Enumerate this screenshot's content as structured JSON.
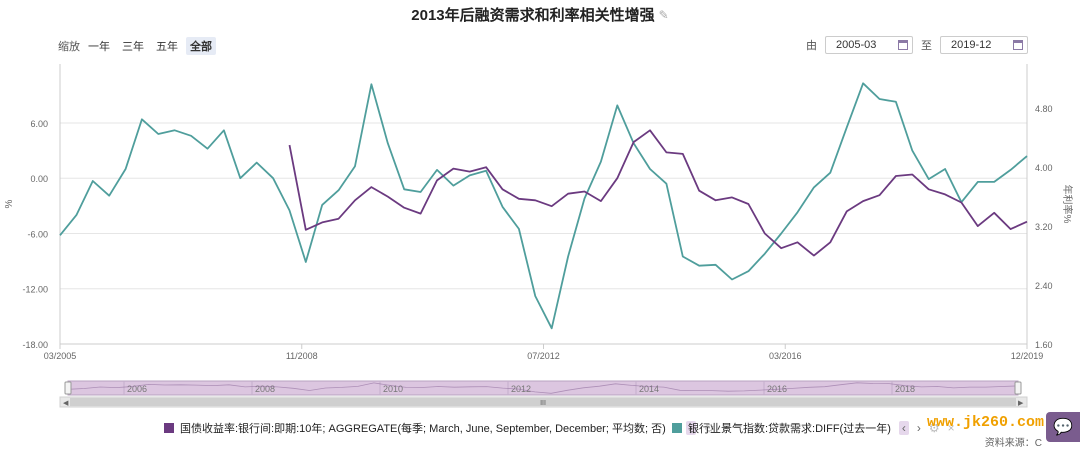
{
  "title": "2013年后融资需求和利率相关性增强",
  "zoom": {
    "label": "缩放",
    "options": [
      "一年",
      "三年",
      "五年",
      "全部"
    ],
    "active": "全部"
  },
  "range": {
    "from_label": "由",
    "from_value": "2005-03",
    "to_label": "至",
    "to_value": "2019-12"
  },
  "chart_data": {
    "type": "line",
    "x_tick_labels": [
      "03/2005",
      "11/2008",
      "07/2012",
      "03/2016",
      "12/2019"
    ],
    "y_left": {
      "label": "%",
      "ticks": [
        6.0,
        0.0,
        -6.0,
        -12.0,
        -18.0
      ],
      "tick_labels": [
        "6.00",
        "0.00",
        "-6.00",
        "-12.00",
        "-18.00"
      ],
      "range": [
        -18,
        12.4
      ]
    },
    "y_right": {
      "label": "年利率%",
      "ticks": [
        4.8,
        4.0,
        3.2,
        2.4,
        1.6
      ],
      "tick_labels": [
        "4.80",
        "4.00",
        "3.20",
        "2.40",
        "1.60"
      ],
      "range": [
        1.6,
        5.4
      ]
    },
    "x_range": [
      2005.25,
      2020.0
    ],
    "series": [
      {
        "name": "银行业景气指数:贷款需求:DIFF(过去一年)",
        "axis": "left",
        "color": "#4f9e9c",
        "points": [
          [
            2005.25,
            -6.2
          ],
          [
            2005.5,
            -4.0
          ],
          [
            2005.75,
            -0.3
          ],
          [
            2006.0,
            -1.9
          ],
          [
            2006.25,
            1.0
          ],
          [
            2006.5,
            6.4
          ],
          [
            2006.75,
            4.8
          ],
          [
            2007.0,
            5.2
          ],
          [
            2007.25,
            4.6
          ],
          [
            2007.5,
            3.2
          ],
          [
            2007.75,
            5.2
          ],
          [
            2008.0,
            0.0
          ],
          [
            2008.25,
            1.7
          ],
          [
            2008.5,
            0.0
          ],
          [
            2008.75,
            -3.5
          ],
          [
            2009.0,
            -9.1
          ],
          [
            2009.25,
            -2.9
          ],
          [
            2009.5,
            -1.3
          ],
          [
            2009.75,
            1.3
          ],
          [
            2010.0,
            10.2
          ],
          [
            2010.25,
            3.8
          ],
          [
            2010.5,
            -1.2
          ],
          [
            2010.75,
            -1.5
          ],
          [
            2011.0,
            0.9
          ],
          [
            2011.25,
            -0.8
          ],
          [
            2011.5,
            0.3
          ],
          [
            2011.75,
            0.8
          ],
          [
            2012.0,
            -3.1
          ],
          [
            2012.25,
            -5.5
          ],
          [
            2012.5,
            -12.8
          ],
          [
            2012.75,
            -16.3
          ],
          [
            2013.0,
            -8.5
          ],
          [
            2013.25,
            -2.2
          ],
          [
            2013.5,
            1.8
          ],
          [
            2013.75,
            7.9
          ],
          [
            2014.0,
            3.8
          ],
          [
            2014.25,
            1.0
          ],
          [
            2014.5,
            -0.6
          ],
          [
            2014.75,
            -8.5
          ],
          [
            2015.0,
            -9.5
          ],
          [
            2015.25,
            -9.4
          ],
          [
            2015.5,
            -11.0
          ],
          [
            2015.75,
            -10.1
          ],
          [
            2016.0,
            -8.2
          ],
          [
            2016.25,
            -6.0
          ],
          [
            2016.5,
            -3.7
          ],
          [
            2016.75,
            -1.0
          ],
          [
            2017.0,
            0.6
          ],
          [
            2017.25,
            5.5
          ],
          [
            2017.5,
            10.3
          ],
          [
            2017.75,
            8.6
          ],
          [
            2018.0,
            8.3
          ],
          [
            2018.25,
            3.0
          ],
          [
            2018.5,
            -0.1
          ],
          [
            2018.75,
            1.0
          ],
          [
            2019.0,
            -2.6
          ],
          [
            2019.25,
            -0.4
          ],
          [
            2019.5,
            -0.4
          ],
          [
            2019.75,
            0.9
          ],
          [
            2020.0,
            2.4
          ]
        ]
      },
      {
        "name": "国债收益率:银行间:即期:10年; AGGREGATE(每季; March, June, September, December; 平均数; 否)",
        "axis": "right",
        "color": "#6b3a80",
        "points": [
          [
            2008.75,
            4.3
          ],
          [
            2009.0,
            3.15
          ],
          [
            2009.25,
            3.25
          ],
          [
            2009.5,
            3.3
          ],
          [
            2009.75,
            3.55
          ],
          [
            2010.0,
            3.73
          ],
          [
            2010.25,
            3.6
          ],
          [
            2010.5,
            3.45
          ],
          [
            2010.75,
            3.37
          ],
          [
            2011.0,
            3.82
          ],
          [
            2011.25,
            3.98
          ],
          [
            2011.5,
            3.94
          ],
          [
            2011.75,
            4.0
          ],
          [
            2012.0,
            3.7
          ],
          [
            2012.25,
            3.57
          ],
          [
            2012.5,
            3.55
          ],
          [
            2012.75,
            3.47
          ],
          [
            2013.0,
            3.64
          ],
          [
            2013.25,
            3.67
          ],
          [
            2013.5,
            3.54
          ],
          [
            2013.75,
            3.85
          ],
          [
            2014.0,
            4.34
          ],
          [
            2014.25,
            4.5
          ],
          [
            2014.5,
            4.2
          ],
          [
            2014.75,
            4.18
          ],
          [
            2015.0,
            3.68
          ],
          [
            2015.25,
            3.55
          ],
          [
            2015.5,
            3.59
          ],
          [
            2015.75,
            3.5
          ],
          [
            2016.0,
            3.1
          ],
          [
            2016.25,
            2.9
          ],
          [
            2016.5,
            2.98
          ],
          [
            2016.75,
            2.8
          ],
          [
            2017.0,
            2.98
          ],
          [
            2017.25,
            3.4
          ],
          [
            2017.5,
            3.54
          ],
          [
            2017.75,
            3.62
          ],
          [
            2018.0,
            3.88
          ],
          [
            2018.25,
            3.9
          ],
          [
            2018.5,
            3.7
          ],
          [
            2018.75,
            3.63
          ],
          [
            2019.0,
            3.52
          ],
          [
            2019.25,
            3.2
          ],
          [
            2019.5,
            3.38
          ],
          [
            2019.75,
            3.16
          ],
          [
            2020.0,
            3.26
          ]
        ]
      }
    ]
  },
  "navigator": {
    "year_labels": [
      "2006",
      "2008",
      "2010",
      "2012",
      "2014",
      "2016",
      "2018"
    ],
    "grip_label": "III"
  },
  "legend_controls": {
    "prev": "‹",
    "next": "›",
    "settings": "⚙",
    "close": "×"
  },
  "watermark": "www.jk260.com",
  "source_label": "资料来源：C"
}
